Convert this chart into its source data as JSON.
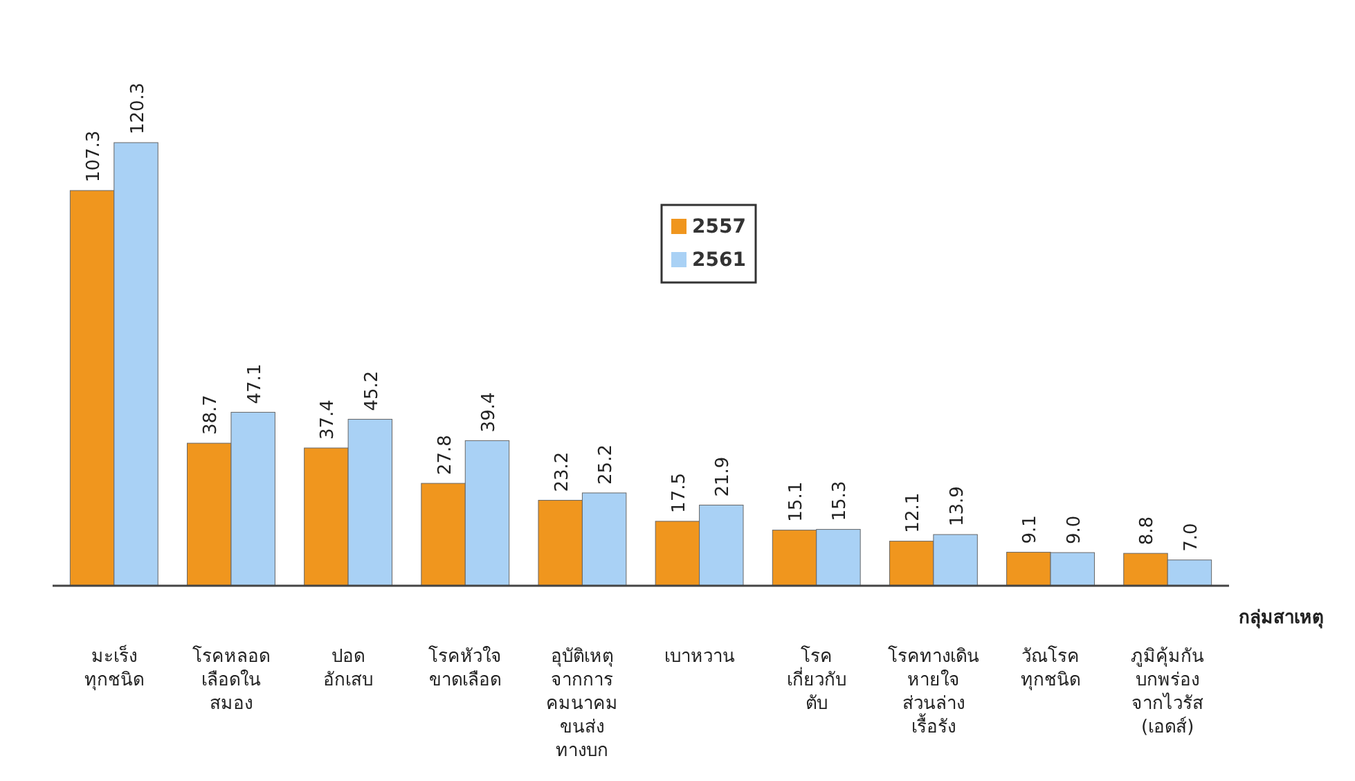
{
  "chart_data": {
    "type": "bar",
    "xlabel": "กลุ่มสาเหตุ",
    "categories": [
      "มะเร็ง\nทุกชนิด",
      "โรคหลอด\nเลือดใน\nสมอง",
      "ปอด\nอักเสบ",
      "โรคหัวใจ\nขาดเลือด",
      "อุบัติเหตุ\nจากการ\nคมนาคม\nขนส่ง\nทางบก",
      "เบาหวาน",
      "โรค\nเกี่ยวกับ\nตับ",
      "โรคทางเดิน\nหายใจ\nส่วนล่าง\nเรื้อรัง",
      "วัณโรค\nทุกชนิด",
      "ภูมิคุ้มกัน\nบกพร่อง\nจากไวรัส\n(เอดส์)"
    ],
    "series": [
      {
        "name": "2557",
        "color": "#f0961e",
        "values": [
          107.3,
          38.7,
          37.4,
          27.8,
          23.2,
          17.5,
          15.1,
          12.1,
          9.1,
          8.8
        ],
        "value_labels": [
          "107.3",
          "38.7",
          "37.4",
          "27.8",
          "23.2",
          "17.5",
          "15.1",
          "12.1",
          "9.1",
          "8.8"
        ]
      },
      {
        "name": "2561",
        "color": "#a9d1f5",
        "values": [
          120.3,
          47.1,
          45.2,
          39.4,
          25.2,
          21.9,
          15.3,
          13.9,
          9.0,
          7.0
        ],
        "value_labels": [
          "120.3",
          "47.1",
          "45.2",
          "39.4",
          "25.2",
          "21.9",
          "15.3",
          "13.9",
          "9.0",
          "7.0"
        ]
      }
    ],
    "legend": "top"
  }
}
